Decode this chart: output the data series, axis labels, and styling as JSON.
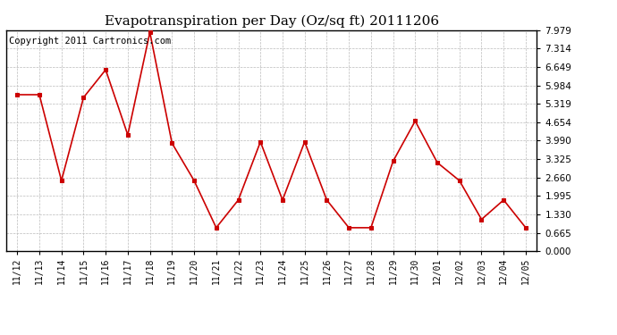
{
  "title": "Evapotranspiration per Day (Oz/sq ft) 20111206",
  "copyright": "Copyright 2011 Cartronics.com",
  "x_labels": [
    "11/12",
    "11/13",
    "11/14",
    "11/15",
    "11/16",
    "11/17",
    "11/18",
    "11/19",
    "11/20",
    "11/21",
    "11/22",
    "11/23",
    "11/24",
    "11/25",
    "11/26",
    "11/27",
    "11/28",
    "11/29",
    "11/30",
    "12/01",
    "12/02",
    "12/03",
    "12/04",
    "12/05"
  ],
  "y_values": [
    5.65,
    5.65,
    2.55,
    5.55,
    6.55,
    4.2,
    7.9,
    3.9,
    2.55,
    0.85,
    1.85,
    3.95,
    1.85,
    3.95,
    1.85,
    0.85,
    0.85,
    3.25,
    4.7,
    3.2,
    2.55,
    1.15,
    1.85,
    0.85
  ],
  "line_color": "#cc0000",
  "marker_color": "#cc0000",
  "bg_color": "#ffffff",
  "grid_color": "#bbbbbb",
  "yticks": [
    0.0,
    0.665,
    1.33,
    1.995,
    2.66,
    3.325,
    3.99,
    4.654,
    5.319,
    5.984,
    6.649,
    7.314,
    7.979
  ],
  "ylim": [
    0.0,
    7.979
  ],
  "title_fontsize": 11,
  "copyright_fontsize": 7.5,
  "tick_fontsize": 7,
  "ytick_fontsize": 7.5
}
